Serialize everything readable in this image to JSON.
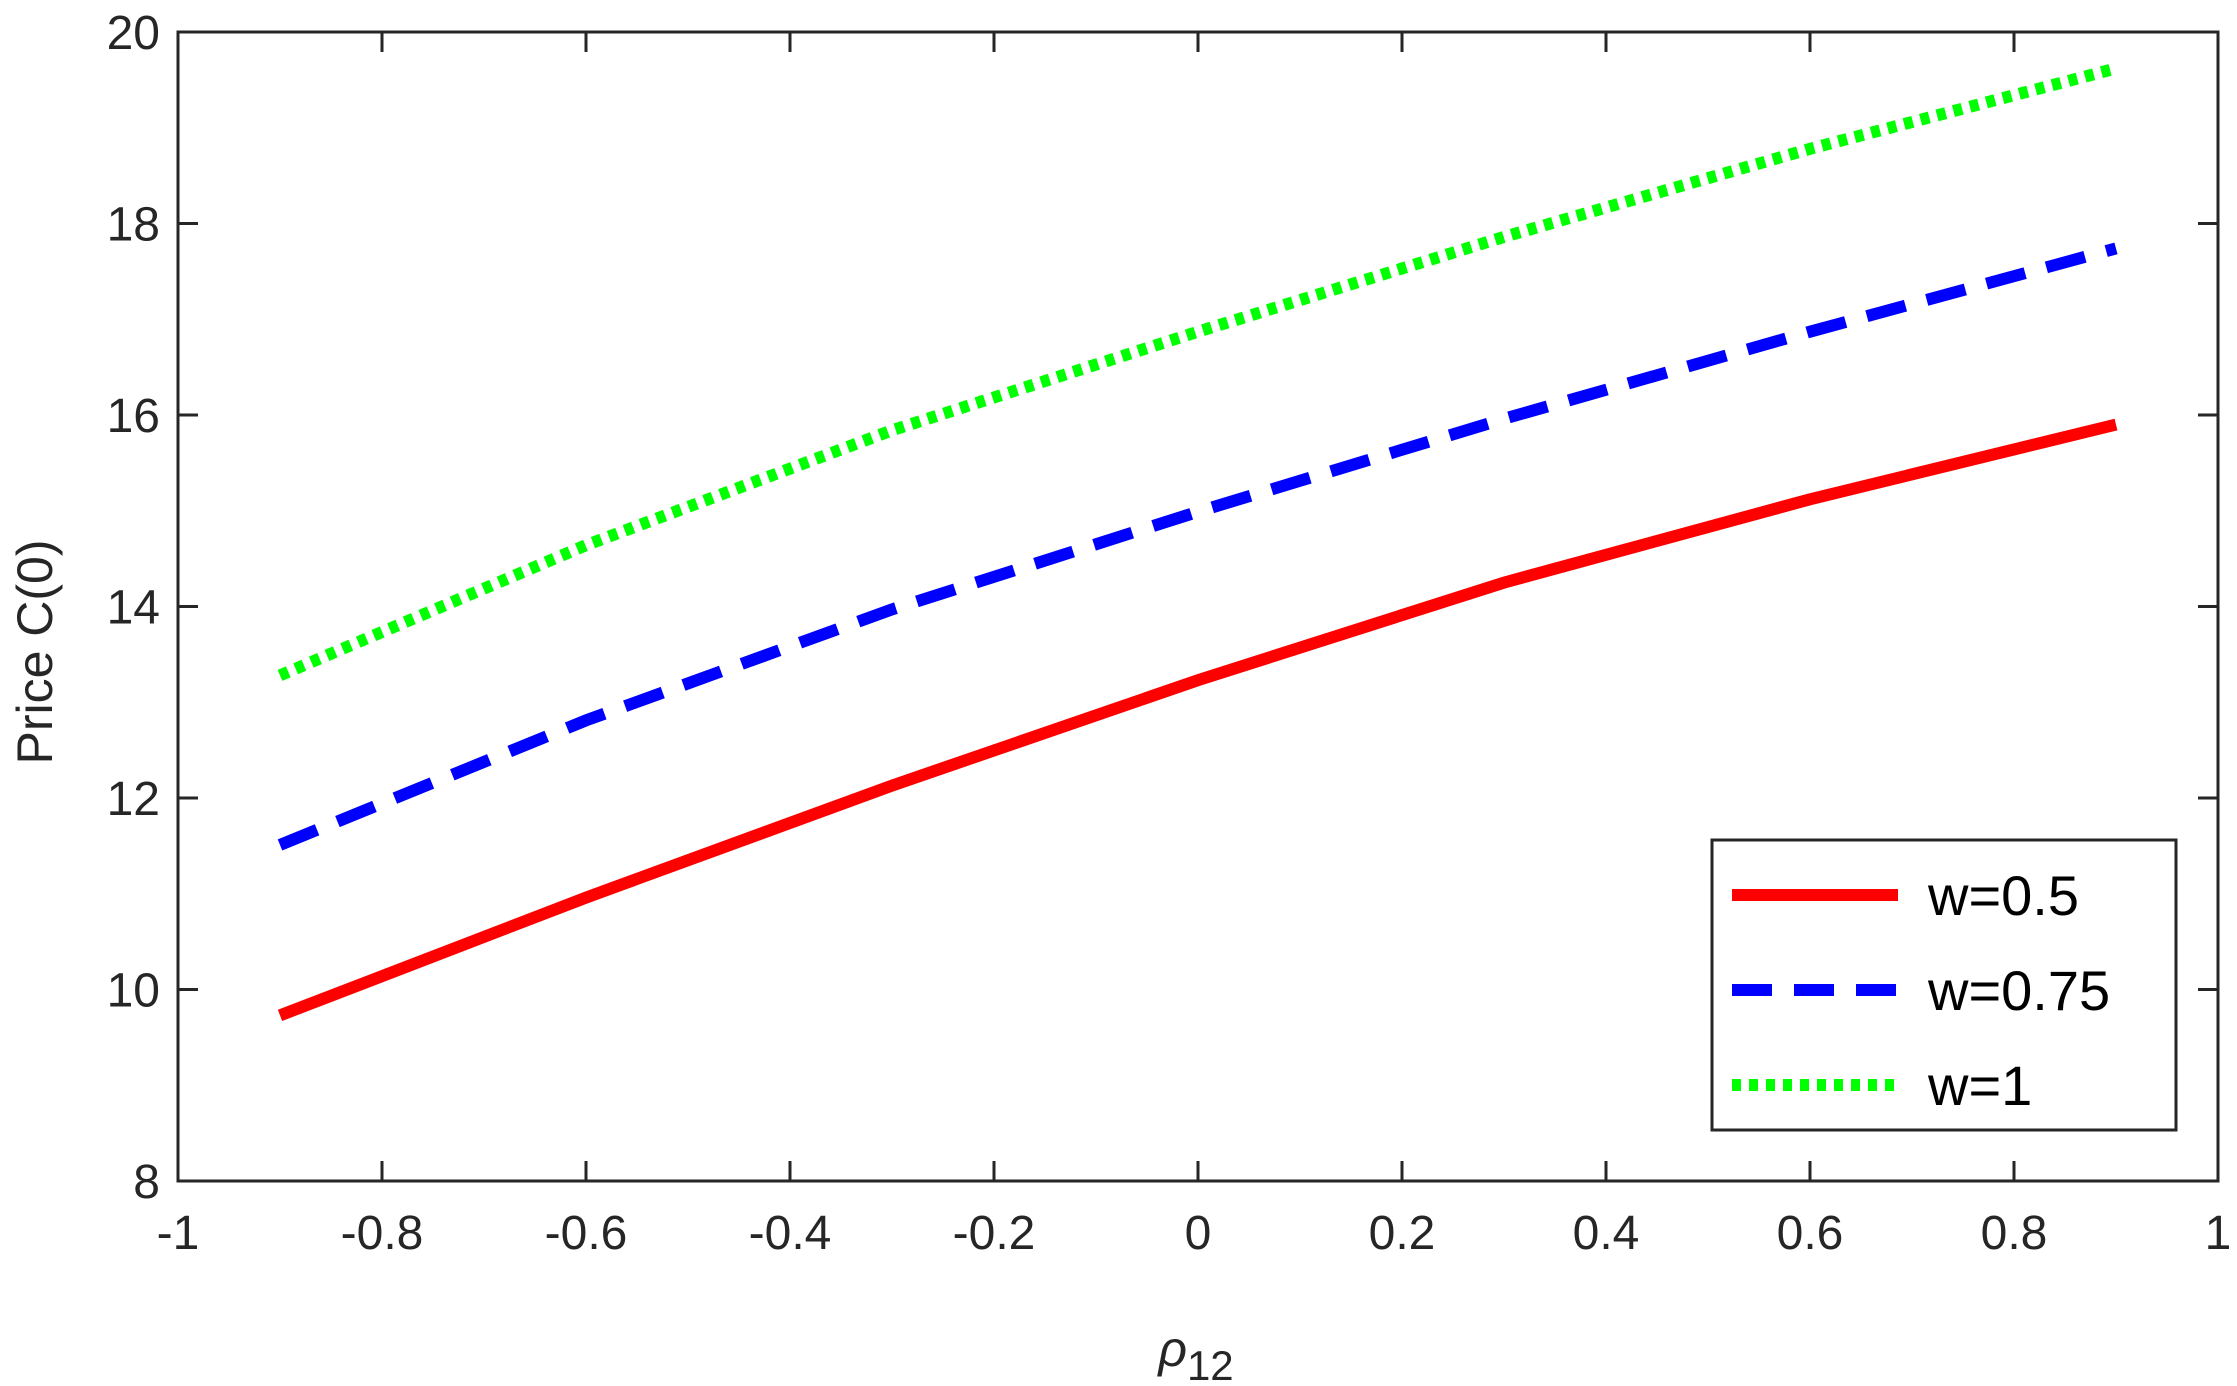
{
  "chart_data": {
    "type": "line",
    "title": "",
    "xlabel": "ρ",
    "xlabel_sub": "12",
    "ylabel": "Price C(0)",
    "xlim": [
      -1,
      1
    ],
    "ylim": [
      8,
      20
    ],
    "xticks": [
      -1,
      -0.8,
      -0.6,
      -0.4,
      -0.2,
      0,
      0.2,
      0.4,
      0.6,
      0.8,
      1
    ],
    "xtick_labels": [
      "-1",
      "-0.8",
      "-0.6",
      "-0.4",
      "-0.2",
      "0",
      "0.2",
      "0.4",
      "0.6",
      "0.8",
      "1"
    ],
    "yticks": [
      8,
      10,
      12,
      14,
      16,
      18,
      20
    ],
    "ytick_labels": [
      "8",
      "10",
      "12",
      "14",
      "16",
      "18",
      "20"
    ],
    "grid": false,
    "legend_position": "bottom-right",
    "x": [
      -0.9,
      -0.6,
      -0.3,
      0,
      0.3,
      0.6,
      0.9
    ],
    "series": [
      {
        "name": "w=0.5",
        "style": "solid",
        "color": "#ff0000",
        "values": [
          9.73,
          10.96,
          12.13,
          13.23,
          14.25,
          15.12,
          15.9
        ]
      },
      {
        "name": "w=0.75",
        "style": "dashed",
        "color": "#0000ff",
        "values": [
          11.51,
          12.81,
          13.97,
          14.99,
          15.96,
          16.87,
          17.74
        ]
      },
      {
        "name": "w=1",
        "style": "dotted",
        "color": "#00ff00",
        "values": [
          13.28,
          14.64,
          15.84,
          16.87,
          17.86,
          18.78,
          19.62
        ]
      }
    ]
  }
}
